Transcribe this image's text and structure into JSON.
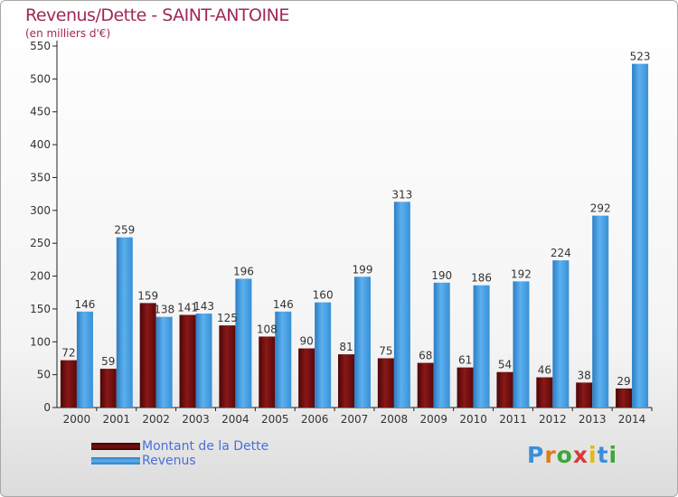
{
  "header": {
    "title": "Revenus/Dette - SAINT-ANTOINE",
    "subtitle": "(en milliers d'€)"
  },
  "legend": {
    "debt_label": "Montant de la Dette",
    "revenue_label": "Revenus"
  },
  "logo": {
    "text": "Proxiti"
  },
  "colors": {
    "debt": "#6b0a0a",
    "revenue": "#3d9ae0",
    "label": "#333333",
    "axis": "#222222"
  },
  "chart_data": {
    "type": "bar",
    "title": "Revenus/Dette - SAINT-ANTOINE",
    "subtitle": "(en milliers d'€)",
    "categories": [
      "2000",
      "2001",
      "2002",
      "2003",
      "2004",
      "2005",
      "2006",
      "2007",
      "2008",
      "2009",
      "2010",
      "2011",
      "2012",
      "2013",
      "2014"
    ],
    "series": [
      {
        "name": "Montant de la Dette",
        "values": [
          72,
          59,
          159,
          141,
          125,
          108,
          90,
          81,
          75,
          68,
          61,
          54,
          46,
          38,
          29
        ]
      },
      {
        "name": "Revenus",
        "values": [
          146,
          259,
          138,
          143,
          196,
          146,
          160,
          199,
          313,
          190,
          186,
          192,
          224,
          292,
          523
        ]
      }
    ],
    "yticks": [
      0,
      50,
      100,
      150,
      200,
      250,
      300,
      350,
      400,
      450,
      500,
      550
    ],
    "ylim": [
      0,
      550
    ],
    "legend_position": "bottom-left",
    "grid": false
  }
}
